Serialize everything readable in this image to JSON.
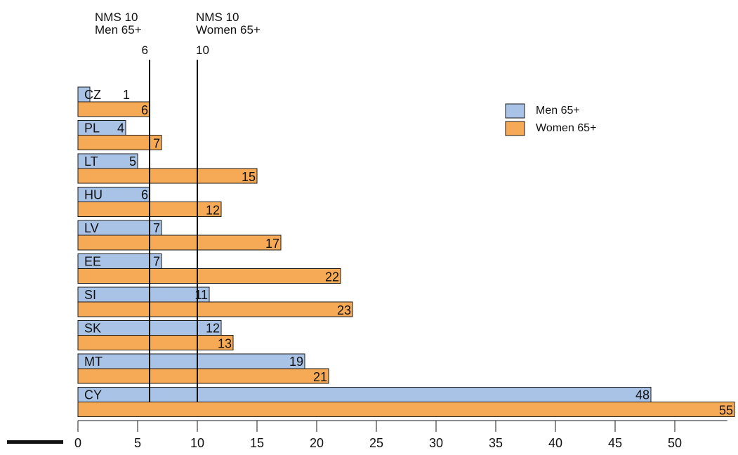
{
  "chart_data": {
    "type": "bar",
    "orientation": "horizontal",
    "categories": [
      "CZ",
      "PL",
      "LT",
      "HU",
      "LV",
      "EE",
      "SI",
      "SK",
      "MT",
      "CY"
    ],
    "series": [
      {
        "name": "Men 65+",
        "values": [
          1,
          4,
          5,
          6,
          7,
          7,
          11,
          12,
          19,
          48
        ],
        "color": "#a9c3e6"
      },
      {
        "name": "Women 65+",
        "values": [
          6,
          7,
          15,
          12,
          17,
          22,
          23,
          13,
          21,
          55
        ],
        "color": "#f7aa55"
      }
    ],
    "reference_lines": [
      {
        "label_lines": [
          "NMS 10",
          "Men 65+"
        ],
        "value": 6,
        "value_label": "6"
      },
      {
        "label_lines": [
          "NMS 10",
          "Women 65+"
        ],
        "value": 10,
        "value_label": "10"
      }
    ],
    "xticks": [
      0,
      5,
      10,
      15,
      20,
      25,
      30,
      35,
      40,
      45,
      50
    ],
    "xlim": [
      0,
      54.4
    ],
    "legend_placement": "top-right",
    "grid": false
  }
}
